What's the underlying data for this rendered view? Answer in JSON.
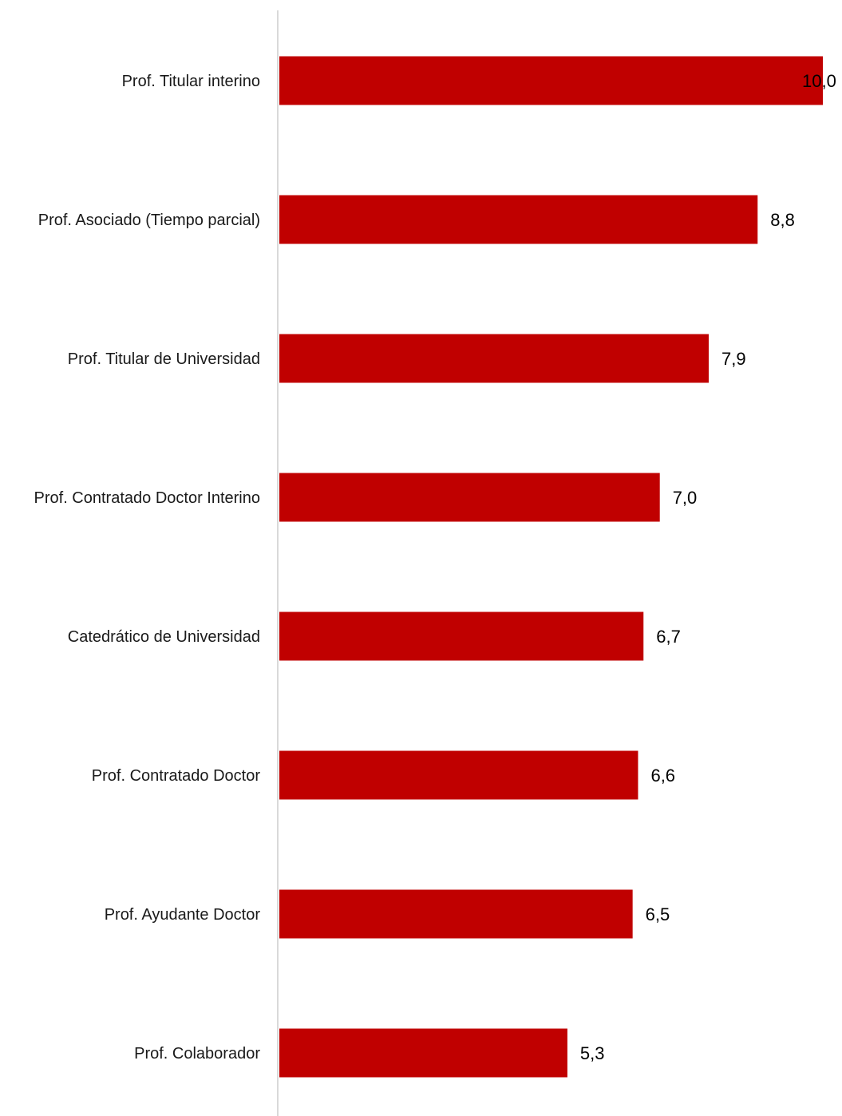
{
  "chart_data": {
    "type": "bar",
    "orientation": "horizontal",
    "categories": [
      "Prof. Titular interino",
      "Prof. Asociado (Tiempo parcial)",
      "Prof. Titular de Universidad",
      "Prof. Contratado Doctor Interino",
      "Catedrático de Universidad",
      "Prof. Contratado Doctor",
      "Prof. Ayudante Doctor",
      "Prof. Colaborador"
    ],
    "values": [
      10.0,
      8.8,
      7.9,
      7.0,
      6.7,
      6.6,
      6.5,
      5.3
    ],
    "data_labels": [
      "10,0",
      "8,8",
      "7,9",
      "7,0",
      "6,7",
      "6,6",
      "6,5",
      "5,3"
    ],
    "title": "",
    "xlabel": "",
    "ylabel": "",
    "xlim": [
      0,
      10
    ],
    "grid": false,
    "legend": "none",
    "colors": {
      "bar": "#c00000",
      "axis": "#d9d9d9"
    }
  }
}
